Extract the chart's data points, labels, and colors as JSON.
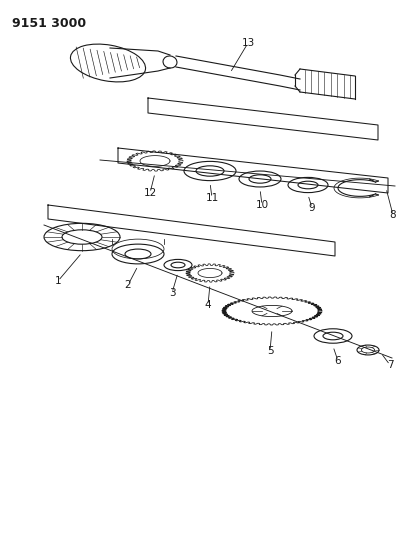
{
  "title": "9151 3000",
  "bg_color": "#ffffff",
  "line_color": "#1a1a1a",
  "title_fontsize": 9,
  "label_fontsize": 7.5,
  "fig_width": 4.11,
  "fig_height": 5.33,
  "dpi": 100
}
